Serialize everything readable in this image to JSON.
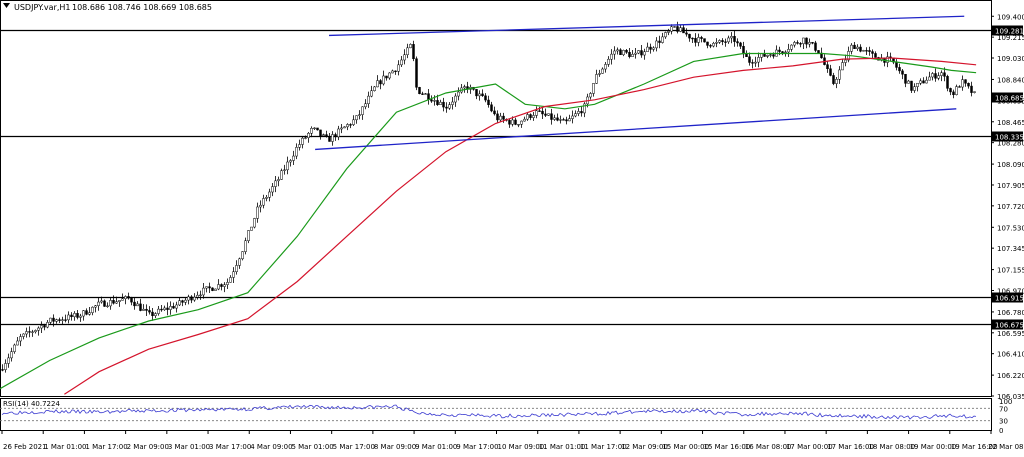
{
  "chart_data": [
    {
      "type": "candlestick",
      "symbol_label": "USDJPY.var,H1",
      "ohlc_text": "108.686 108.746 108.669 108.685",
      "last_price": 108.685,
      "ylim": [
        106.035,
        109.42
      ],
      "y_ticks": [
        "109.400",
        "109.215",
        "109.030",
        "108.840",
        "108.655",
        "108.465",
        "108.280",
        "108.090",
        "107.905",
        "107.720",
        "107.530",
        "107.345",
        "107.155",
        "106.970",
        "106.780",
        "106.595",
        "106.410",
        "106.220",
        "106.035"
      ],
      "x_ticks": [
        "26 Feb 2021",
        "1 Mar 01:00",
        "1 Mar 17:00",
        "2 Mar 09:00",
        "3 Mar 01:00",
        "3 Mar 17:00",
        "4 Mar 09:00",
        "5 Mar 01:00",
        "5 Mar 17:00",
        "8 Mar 09:00",
        "9 Mar 01:00",
        "9 Mar 17:00",
        "10 Mar 09:00",
        "11 Mar 01:00",
        "11 Mar 17:00",
        "12 Mar 09:00",
        "15 Mar 00:00",
        "15 Mar 16:00",
        "16 Mar 08:00",
        "17 Mar 00:00",
        "17 Mar 16:00",
        "18 Mar 08:00",
        "19 Mar 00:00",
        "19 Mar 16:00",
        "22 Mar 08:00"
      ],
      "horizontal_levels": [
        {
          "price": 109.281,
          "label": "109.281"
        },
        {
          "price": 108.335,
          "label": "108.335"
        },
        {
          "price": 106.915,
          "label": "106.915"
        },
        {
          "price": 106.675,
          "label": "106.675"
        }
      ],
      "channel_lines": [
        {
          "points": [
            [
              0.332,
              109.23
            ],
            [
              0.973,
              109.4
            ]
          ]
        },
        {
          "points": [
            [
              0.318,
              108.22
            ],
            [
              0.965,
              108.58
            ]
          ]
        }
      ],
      "price_path": [
        [
          0,
          106.27
        ],
        [
          0.02,
          106.55
        ],
        [
          0.05,
          106.7
        ],
        [
          0.08,
          106.75
        ],
        [
          0.1,
          106.85
        ],
        [
          0.13,
          106.9
        ],
        [
          0.15,
          106.75
        ],
        [
          0.18,
          106.85
        ],
        [
          0.2,
          106.95
        ],
        [
          0.23,
          107.05
        ],
        [
          0.245,
          107.35
        ],
        [
          0.26,
          107.7
        ],
        [
          0.28,
          107.95
        ],
        [
          0.3,
          108.25
        ],
        [
          0.315,
          108.4
        ],
        [
          0.33,
          108.3
        ],
        [
          0.36,
          108.5
        ],
        [
          0.38,
          108.8
        ],
        [
          0.4,
          108.95
        ],
        [
          0.415,
          109.15
        ],
        [
          0.42,
          108.75
        ],
        [
          0.43,
          108.7
        ],
        [
          0.45,
          108.6
        ],
        [
          0.47,
          108.78
        ],
        [
          0.49,
          108.65
        ],
        [
          0.5,
          108.5
        ],
        [
          0.52,
          108.45
        ],
        [
          0.54,
          108.55
        ],
        [
          0.57,
          108.45
        ],
        [
          0.59,
          108.6
        ],
        [
          0.6,
          108.85
        ],
        [
          0.62,
          109.1
        ],
        [
          0.64,
          109.05
        ],
        [
          0.66,
          109.15
        ],
        [
          0.68,
          109.3
        ],
        [
          0.7,
          109.2
        ],
        [
          0.72,
          109.15
        ],
        [
          0.74,
          109.2
        ],
        [
          0.755,
          109.0
        ],
        [
          0.77,
          109.05
        ],
        [
          0.79,
          109.1
        ],
        [
          0.81,
          109.2
        ],
        [
          0.825,
          109.1
        ],
        [
          0.84,
          108.8
        ],
        [
          0.86,
          109.15
        ],
        [
          0.88,
          109.05
        ],
        [
          0.9,
          109.0
        ],
        [
          0.92,
          108.75
        ],
        [
          0.935,
          108.85
        ],
        [
          0.95,
          108.9
        ],
        [
          0.96,
          108.7
        ],
        [
          0.97,
          108.82
        ],
        [
          0.985,
          108.685
        ]
      ],
      "series": [
        {
          "name": "",
          "color": "#1a9a1a",
          "points": [
            [
              0,
              106.1
            ],
            [
              0.05,
              106.35
            ],
            [
              0.1,
              106.55
            ],
            [
              0.15,
              106.7
            ],
            [
              0.2,
              106.8
            ],
            [
              0.25,
              106.95
            ],
            [
              0.3,
              107.45
            ],
            [
              0.35,
              108.05
            ],
            [
              0.4,
              108.55
            ],
            [
              0.45,
              108.72
            ],
            [
              0.5,
              108.8
            ],
            [
              0.53,
              108.62
            ],
            [
              0.57,
              108.58
            ],
            [
              0.6,
              108.62
            ],
            [
              0.65,
              108.8
            ],
            [
              0.7,
              109.0
            ],
            [
              0.75,
              109.07
            ],
            [
              0.8,
              109.07
            ],
            [
              0.83,
              109.07
            ],
            [
              0.86,
              109.05
            ],
            [
              0.9,
              109.0
            ],
            [
              0.94,
              108.95
            ],
            [
              0.96,
              108.92
            ],
            [
              0.985,
              108.9
            ]
          ]
        },
        {
          "name": "",
          "color": "#d4142c",
          "points": [
            [
              0.065,
              106.05
            ],
            [
              0.1,
              106.25
            ],
            [
              0.15,
              106.45
            ],
            [
              0.2,
              106.58
            ],
            [
              0.25,
              106.72
            ],
            [
              0.3,
              107.05
            ],
            [
              0.35,
              107.45
            ],
            [
              0.4,
              107.85
            ],
            [
              0.45,
              108.2
            ],
            [
              0.5,
              108.45
            ],
            [
              0.55,
              108.6
            ],
            [
              0.6,
              108.66
            ],
            [
              0.65,
              108.75
            ],
            [
              0.7,
              108.86
            ],
            [
              0.75,
              108.92
            ],
            [
              0.8,
              108.96
            ],
            [
              0.85,
              109.02
            ],
            [
              0.9,
              109.03
            ],
            [
              0.95,
              109.0
            ],
            [
              0.985,
              108.97
            ]
          ]
        }
      ]
    },
    {
      "type": "line",
      "label": "RSI(14) 40.7224",
      "ylim": [
        0,
        100
      ],
      "y_ticks": [
        "100",
        "70",
        "30",
        "0"
      ],
      "levels": [
        70,
        30
      ],
      "series": [
        {
          "name": "",
          "color": "#3a3ad0",
          "points": [
            [
              0,
              55
            ],
            [
              0.05,
              60
            ],
            [
              0.1,
              58
            ],
            [
              0.15,
              62
            ],
            [
              0.2,
              65
            ],
            [
              0.25,
              68
            ],
            [
              0.3,
              75
            ],
            [
              0.35,
              72
            ],
            [
              0.4,
              76
            ],
            [
              0.42,
              55
            ],
            [
              0.45,
              50
            ],
            [
              0.5,
              45
            ],
            [
              0.55,
              48
            ],
            [
              0.6,
              52
            ],
            [
              0.65,
              60
            ],
            [
              0.7,
              62
            ],
            [
              0.75,
              50
            ],
            [
              0.8,
              55
            ],
            [
              0.83,
              48
            ],
            [
              0.86,
              45
            ],
            [
              0.9,
              42
            ],
            [
              0.93,
              40
            ],
            [
              0.96,
              48
            ],
            [
              0.985,
              40.7
            ]
          ]
        }
      ]
    }
  ]
}
